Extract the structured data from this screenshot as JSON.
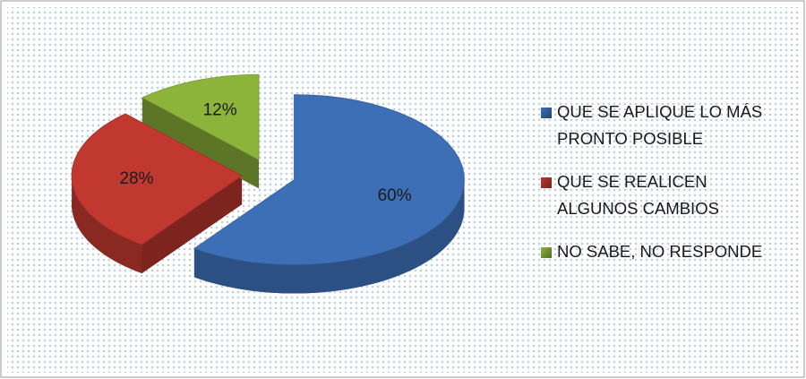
{
  "chart_data": {
    "type": "pie",
    "categories": [
      "QUE SE APLIQUE LO MÁS PRONTO POSIBLE",
      "QUE SE REALICEN ALGUNOS CAMBIOS",
      "NO SABE, NO RESPONDE"
    ],
    "values": [
      60,
      28,
      12
    ],
    "value_labels": [
      "60%",
      "28%",
      "12%"
    ],
    "colors": [
      "#3d6fb6",
      "#c0382f",
      "#8db43a"
    ],
    "legend": "right"
  }
}
